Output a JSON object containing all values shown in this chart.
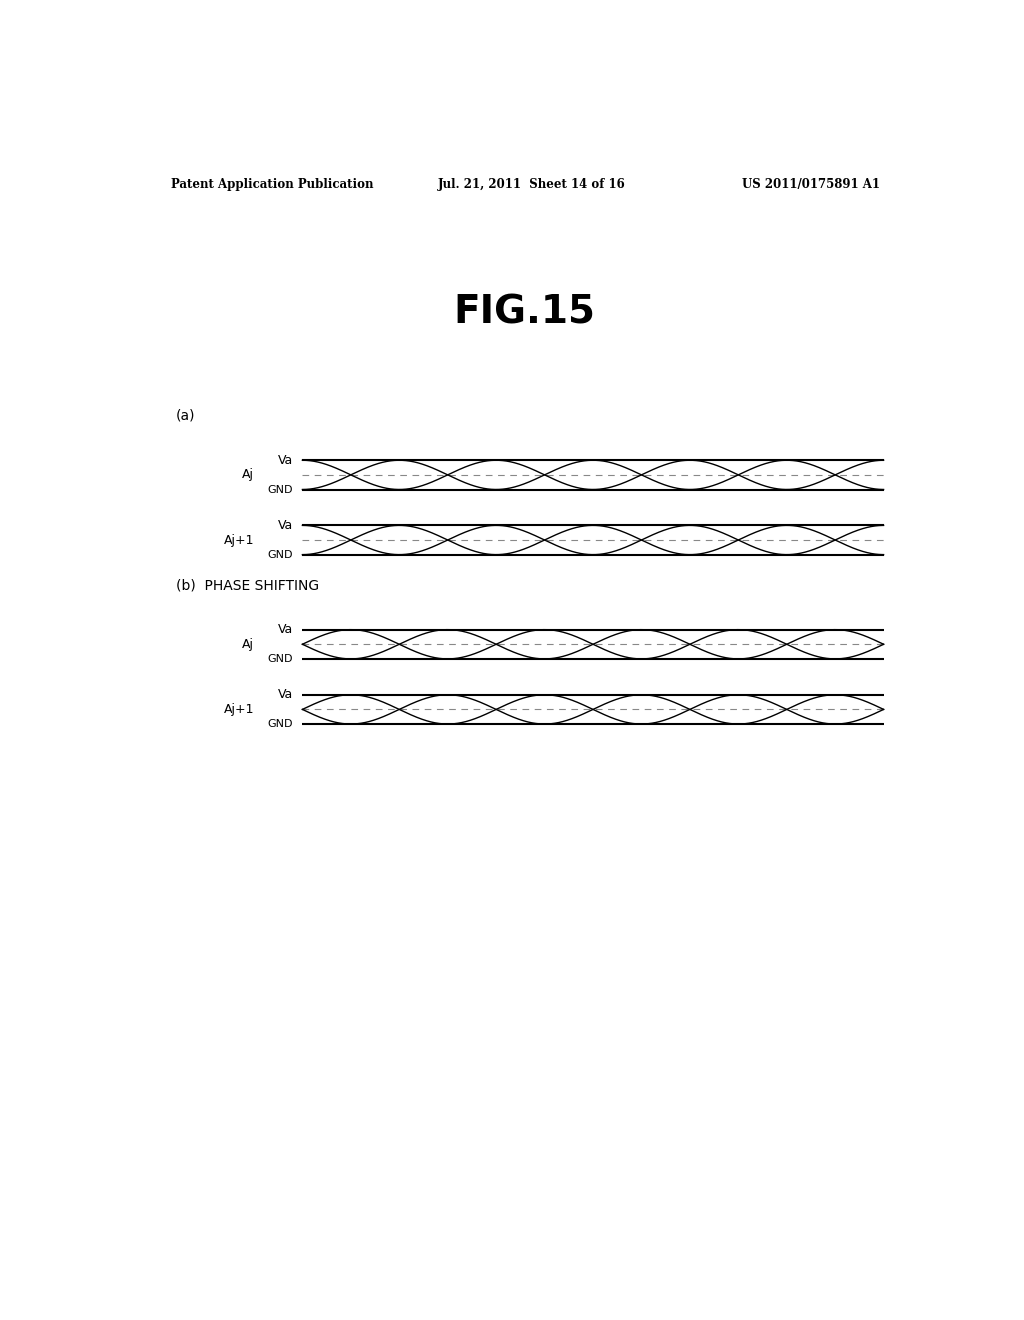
{
  "title": "FIG.15",
  "header_left": "Patent Application Publication",
  "header_mid": "Jul. 21, 2011  Sheet 14 of 16",
  "header_right": "US 2011/0175891 A1",
  "section_a_label": "(a)",
  "section_b_label": "(b)  PHASE SHIFTING",
  "bg_color": "#ffffff",
  "line_color": "#000000",
  "dashed_color": "#888888",
  "fig_title_fontsize": 28,
  "header_fontsize": 8.5,
  "label_fontsize": 10,
  "signal_fontsize": 9,
  "va_label": "Va",
  "gnd_label": "GND",
  "aj_label": "Aj",
  "aj1_label": "Aj+1"
}
